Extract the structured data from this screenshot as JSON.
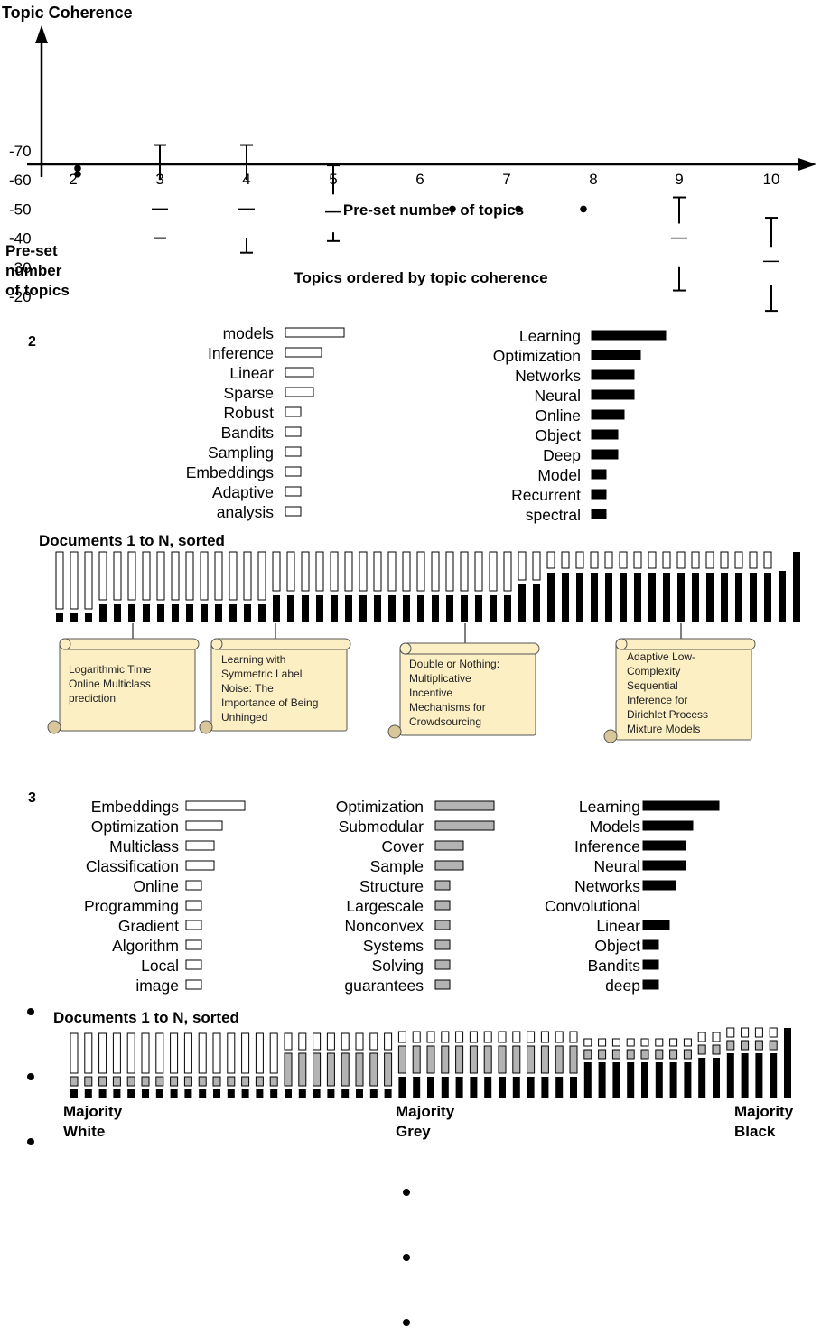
{
  "colors": {
    "white_topic": "#ffffff",
    "grey_topic": "#b3b3b3",
    "black_topic": "#000000",
    "callout_fill": "#fcefc4"
  },
  "chart_data": {
    "type": "box",
    "ylabel": "Topic Coherence",
    "xlabel": "Pre-set number of topics",
    "categories": [
      "2",
      "3",
      "4",
      "5",
      "6",
      "7",
      "8",
      "9",
      "10"
    ],
    "ylim": [
      -75,
      -15
    ],
    "yticks": [
      -20,
      -30,
      -40,
      -50,
      -60,
      -70
    ],
    "boxes": [
      {
        "x": "3",
        "min": -72,
        "q1": -60,
        "median": -50,
        "q3": -40,
        "max": -40
      },
      {
        "x": "4",
        "min": -72,
        "q1": -60,
        "median": -50,
        "q3": -40,
        "max": -35
      },
      {
        "x": "5",
        "min": -65,
        "q1": -55,
        "median": -49,
        "q3": -42,
        "max": -39
      },
      {
        "x": "9",
        "min": -54,
        "q1": -45,
        "median": -40,
        "q3": -30,
        "max": -22
      },
      {
        "x": "10",
        "min": -47,
        "q1": -37,
        "median": -32,
        "q3": -24,
        "max": -15
      }
    ],
    "points": [
      {
        "x": "2",
        "y": -62
      },
      {
        "x": "2",
        "y": -64
      },
      {
        "x": "6",
        "y": -50
      },
      {
        "x": "7",
        "y": -50
      },
      {
        "x": "8",
        "y": -50
      }
    ]
  },
  "row_header": [
    "Pre-set",
    "number",
    "of topics"
  ],
  "section_title": "Topics ordered by topic coherence",
  "docs_title": "Documents 1 to N, sorted",
  "section2": {
    "label": "2",
    "white_words": [
      "models",
      "Inference",
      "Linear",
      "Sparse",
      "Robust",
      "Bandits",
      "Sampling",
      "Embeddings",
      "Adaptive",
      "analysis"
    ],
    "white_values": [
      65,
      40,
      31,
      31,
      17,
      17,
      17,
      17,
      17,
      17
    ],
    "black_words": [
      "Learning",
      "Optimization",
      "Networks",
      "Neural",
      "Online",
      "Object",
      "Deep",
      "Model",
      "Recurrent",
      "spectral"
    ],
    "black_values": [
      82,
      54,
      47,
      47,
      36,
      29,
      29,
      16,
      16,
      16
    ],
    "callouts": [
      [
        "Logarithmic Time",
        "Online Multiclass",
        "prediction"
      ],
      [
        "Learning with",
        "Symmetric Label",
        "Noise: The",
        "Importance of Being",
        "Unhinged"
      ],
      [
        "Double or Nothing:",
        "Multiplicative",
        "Incentive",
        "Mechanisms for",
        "Crowdsourcing"
      ],
      [
        "Adaptive Low-",
        "Complexity",
        "Sequential",
        "Inference for",
        "Dirichlet Process",
        "Mixture Models"
      ]
    ]
  },
  "section3": {
    "label": "3",
    "white_words": [
      "Embeddings",
      "Optimization",
      "Multiclass",
      "Classification",
      "Online",
      "Programming",
      "Gradient",
      "Algorithm",
      "Local",
      "image"
    ],
    "white_values": [
      65,
      40,
      31,
      31,
      17,
      17,
      17,
      17,
      17,
      17
    ],
    "grey_words": [
      "Optimization",
      "Submodular",
      "Cover",
      "Sample",
      "Structure",
      "Largescale",
      "Nonconvex",
      "Systems",
      "Solving",
      "guarantees"
    ],
    "grey_values": [
      65,
      65,
      31,
      31,
      16,
      16,
      16,
      16,
      16,
      16
    ],
    "black_words": [
      "Learning",
      "Models",
      "Inference",
      "Neural",
      "Networks",
      "Convolutional",
      "Linear",
      "Object",
      "Bandits",
      "deep"
    ],
    "black_values": [
      84,
      55,
      47,
      47,
      36,
      0,
      29,
      17,
      17,
      17
    ],
    "majority_labels": [
      [
        "Majority",
        "White"
      ],
      [
        "Majority",
        "Grey"
      ],
      [
        "Majority",
        "Black"
      ]
    ]
  }
}
